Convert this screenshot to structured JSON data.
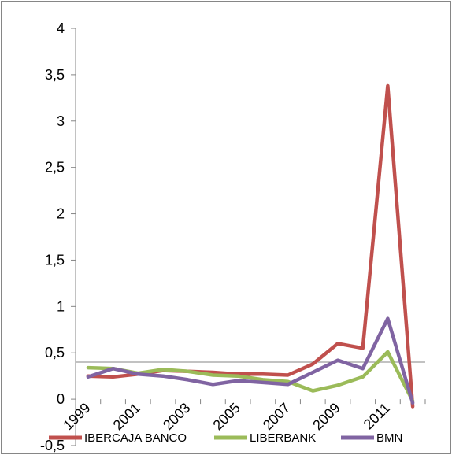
{
  "chart_data": {
    "type": "line",
    "title": "",
    "xlabel": "",
    "ylabel": "",
    "x": [
      1999,
      2000,
      2001,
      2002,
      2003,
      2004,
      2005,
      2006,
      2007,
      2008,
      2009,
      2010,
      2011,
      2012
    ],
    "x_tick_labels": [
      "1999",
      "2001",
      "2003",
      "2005",
      "2007",
      "2009",
      "2011"
    ],
    "y_tick_labels": [
      "-0,5",
      "0",
      "0,5",
      "1",
      "1,5",
      "2",
      "2,5",
      "3",
      "3,5",
      "4"
    ],
    "ylim": [
      -0.5,
      4
    ],
    "grid": false,
    "legend_position": "bottom",
    "series": [
      {
        "name": "IBERCAJA BANCO",
        "color": "#c0504d",
        "values": [
          0.25,
          0.24,
          0.27,
          0.31,
          0.3,
          0.29,
          0.27,
          0.27,
          0.26,
          0.38,
          0.6,
          0.55,
          3.38,
          -0.08
        ]
      },
      {
        "name": "LIBERBANK",
        "color": "#9bbb59",
        "values": [
          0.34,
          0.33,
          0.28,
          0.32,
          0.3,
          0.26,
          0.25,
          0.21,
          0.19,
          0.09,
          0.15,
          0.24,
          0.51,
          -0.02
        ]
      },
      {
        "name": "BMN",
        "color": "#8064a2",
        "values": [
          0.24,
          0.33,
          0.27,
          0.25,
          0.21,
          0.16,
          0.2,
          0.18,
          0.16,
          0.29,
          0.42,
          0.33,
          0.87,
          -0.04
        ]
      }
    ]
  }
}
